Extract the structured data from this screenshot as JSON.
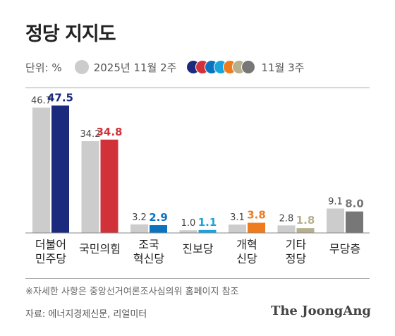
{
  "title": "정당 지지도",
  "legend": {
    "unit": "단위: %",
    "prev_label": "2025년 11월 2주",
    "curr_label": "11월 3주"
  },
  "footnote": "※자세한 사항은 중앙선거여론조사심의위 홈페이지 참조",
  "source": "자료: 에너지경제신문, 리얼미터",
  "logo": "The JoongAng",
  "colors": {
    "prev_bar": "#cccccc",
    "party": [
      "#1c2a7d",
      "#d1323a",
      "#0a73bf",
      "#1aa4dd",
      "#f07b1c",
      "#b6b08f",
      "#777777"
    ]
  },
  "chart_data": {
    "type": "bar",
    "categories": [
      [
        "더불어",
        "민주당"
      ],
      [
        "국민의힘"
      ],
      [
        "조국",
        "혁신당"
      ],
      [
        "진보당"
      ],
      [
        "개혁",
        "신당"
      ],
      [
        "기타",
        "정당"
      ],
      [
        "무당층"
      ]
    ],
    "series": [
      {
        "name": "2025년 11월 2주",
        "values": [
          46.7,
          34.2,
          3.2,
          1.0,
          3.1,
          2.8,
          9.1
        ]
      },
      {
        "name": "11월 3주",
        "values": [
          47.5,
          34.8,
          2.9,
          1.1,
          3.8,
          1.8,
          8.0
        ]
      }
    ],
    "ylim": [
      0,
      50
    ],
    "grid": false,
    "legend_position": "top-left"
  }
}
